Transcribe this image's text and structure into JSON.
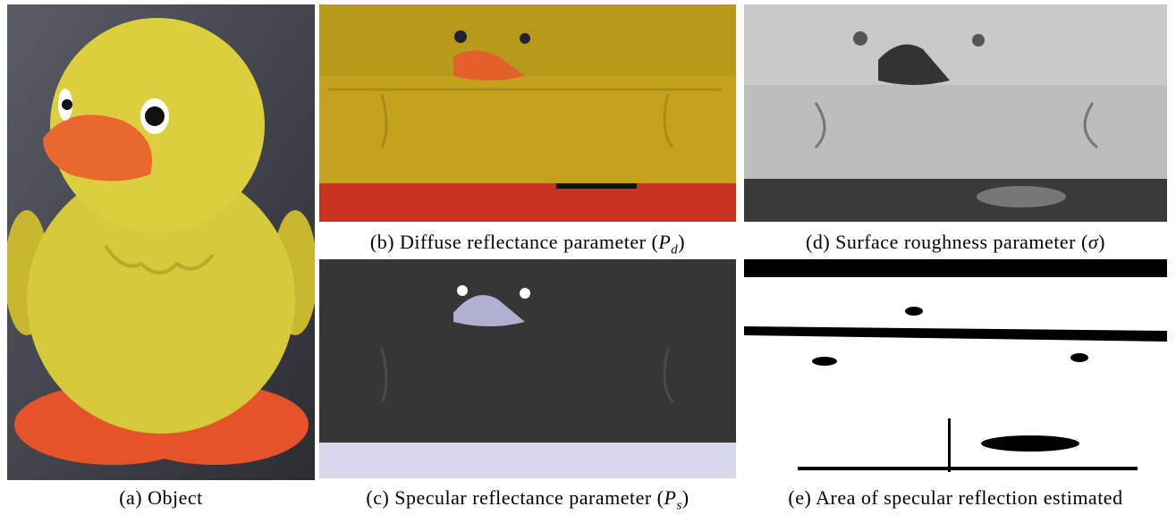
{
  "figure": {
    "panels": [
      {
        "caption": {
          "prefix": "(a) Object"
        }
      },
      {
        "caption": {
          "prefix": "(b) Diffuse reflectance parameter (",
          "symbol": "P",
          "sub": "d",
          "suffix": ")"
        }
      },
      {
        "caption": {
          "prefix": "(c) Specular reflectance parameter (",
          "symbol": "P",
          "sub": "s",
          "suffix": ")"
        }
      },
      {
        "caption": {
          "prefix": "(d) Surface roughness parameter (",
          "symbol": "σ",
          "suffix": ")"
        }
      },
      {
        "caption": {
          "prefix": "(e) Area of specular reflection estimated"
        }
      }
    ]
  }
}
